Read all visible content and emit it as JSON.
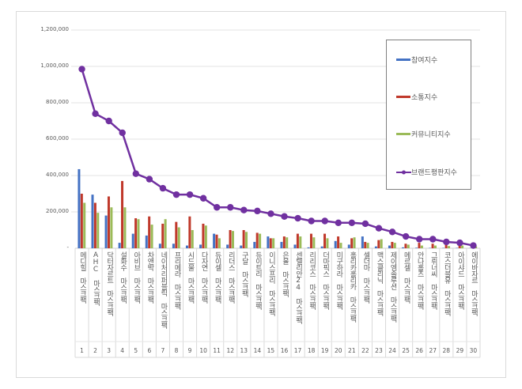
{
  "chart_data": {
    "type": "bar+line",
    "title": "",
    "xlabel": "",
    "ylabel": "",
    "ylim": [
      0,
      1200000
    ],
    "yticks": [
      "-",
      "200,000",
      "400,000",
      "600,000",
      "800,000",
      "1,000,000",
      "1,200,000"
    ],
    "grid": true,
    "legend_position": "right",
    "ranks": [
      "1",
      "2",
      "3",
      "4",
      "5",
      "6",
      "7",
      "8",
      "9",
      "10",
      "11",
      "12",
      "13",
      "14",
      "15",
      "16",
      "17",
      "18",
      "19",
      "20",
      "21",
      "22",
      "23",
      "24",
      "25",
      "26",
      "27",
      "28",
      "29",
      "30"
    ],
    "categories": [
      "메디힐 마스크팩",
      "AHC 마스크팩",
      "닥터자르트 마스크팩",
      "설화수 마스크팩",
      "아비브 마스크팩",
      "차앤박 마스크팩",
      "네이처리퍼블릭 마스크팩",
      "프리메라 마스크팩",
      "시드물 마스크팩",
      "다자연 마스크팩",
      "듀이셀 마스크팩",
      "리더스 마스크팩",
      "구달 마스크팩",
      "듀이트리 마스크팩",
      "이니스프리 마스크팩",
      "은율 마스크팩",
      "센텔리안24 마스크팩",
      "리리코스 마스크팩",
      "더마픽스 마스크팩",
      "미구하라 마스크팩",
      "홀리카홀리카 마스크팩",
      "셀더마 마스크팩",
      "맥스클리닉 마스크팩",
      "제이엠솔루션 마스크팩",
      "메르셀 마스크팩",
      "안나홀츠 마스크팩",
      "그뤼너씨 마스크팩",
      "코스더블유 마스크팩",
      "아이샤드 마스크팩",
      "에이바자르 마스크팩"
    ],
    "series": [
      {
        "name": "참여지수",
        "type": "bar",
        "color": "#4472c4",
        "values": [
          435000,
          295000,
          180000,
          30000,
          80000,
          70000,
          25000,
          25000,
          15000,
          20000,
          80000,
          20000,
          15000,
          35000,
          65000,
          35000,
          20000,
          5000,
          10000,
          40000,
          20000,
          65000,
          10000,
          15000,
          5000,
          3000,
          2000,
          2000,
          2000,
          1000
        ]
      },
      {
        "name": "소통지수",
        "type": "bar",
        "color": "#c0392b",
        "values": [
          300000,
          250000,
          285000,
          370000,
          165000,
          175000,
          135000,
          145000,
          175000,
          135000,
          75000,
          100000,
          100000,
          85000,
          55000,
          65000,
          80000,
          80000,
          80000,
          65000,
          55000,
          35000,
          45000,
          35000,
          25000,
          30000,
          25000,
          25000,
          20000,
          10000
        ]
      },
      {
        "name": "커뮤니티지수",
        "type": "bar",
        "color": "#9bbb59",
        "values": [
          250000,
          195000,
          225000,
          225000,
          160000,
          130000,
          160000,
          115000,
          100000,
          125000,
          55000,
          95000,
          90000,
          80000,
          55000,
          60000,
          65000,
          60000,
          55000,
          30000,
          60000,
          30000,
          50000,
          30000,
          20000,
          15000,
          15000,
          12000,
          15000,
          10000
        ]
      },
      {
        "name": "브랜드평판지수",
        "type": "line",
        "color": "#7030a0",
        "values": [
          985000,
          740000,
          700000,
          635000,
          410000,
          380000,
          330000,
          295000,
          295000,
          275000,
          225000,
          225000,
          210000,
          205000,
          190000,
          175000,
          165000,
          150000,
          150000,
          140000,
          140000,
          135000,
          110000,
          90000,
          65000,
          50000,
          50000,
          35000,
          30000,
          15000
        ]
      }
    ]
  }
}
